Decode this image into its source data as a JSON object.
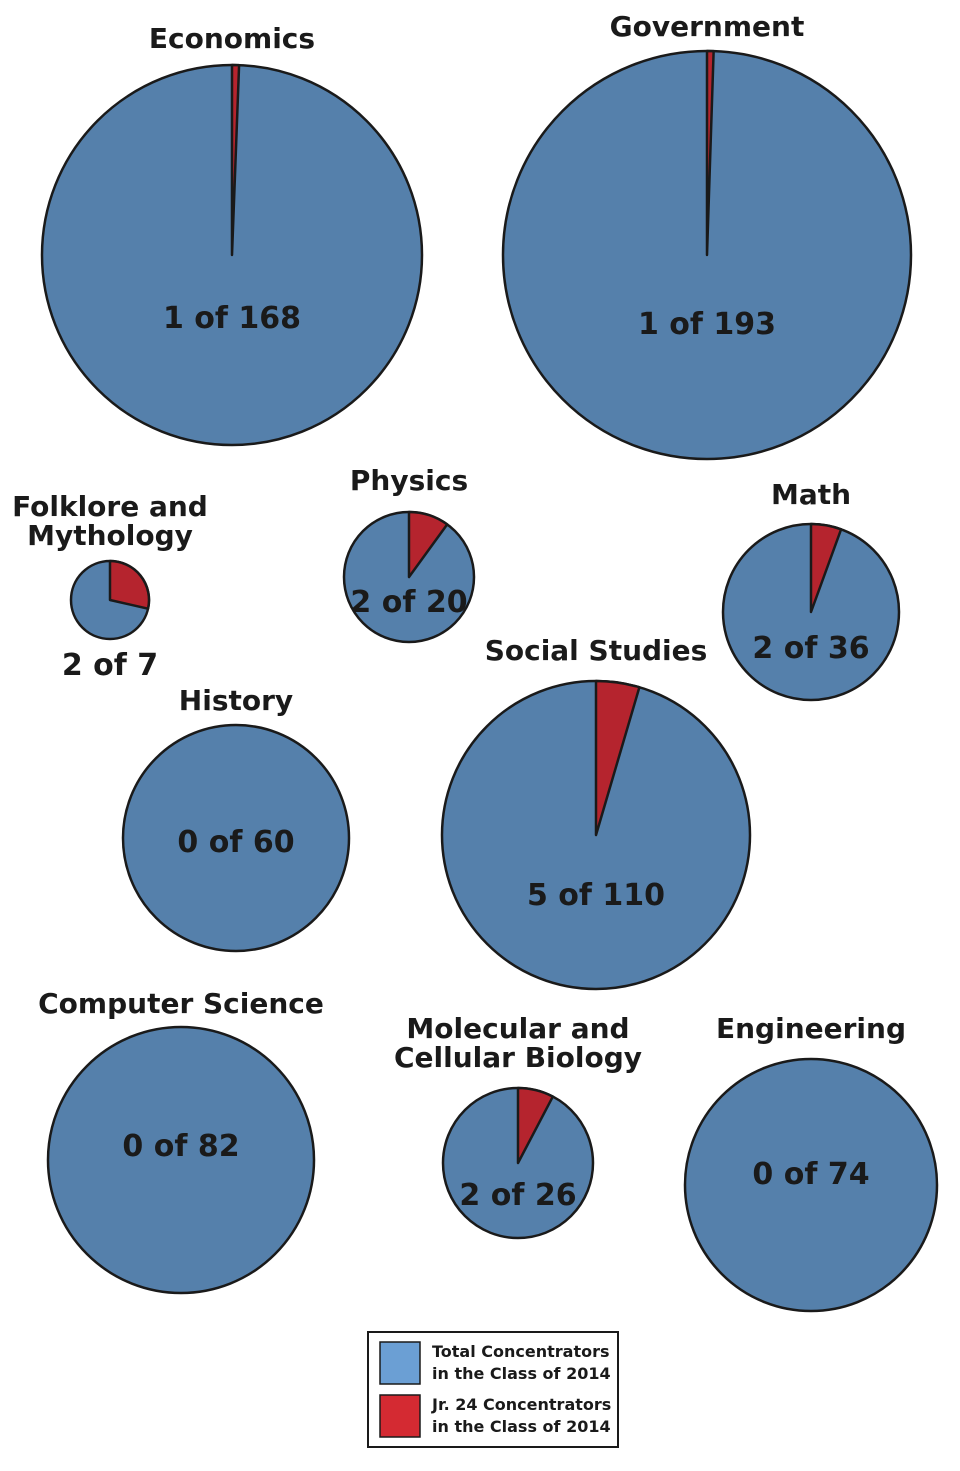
{
  "chart_data": {
    "type": "pie",
    "colors": {
      "total": "#5580ab",
      "jr24": "#b5242e",
      "outline": "#1a1a1a",
      "legend_total": "#6b9fd4",
      "legend_jr24": "#d42a32"
    },
    "legend": [
      {
        "key": "total",
        "line1": "Total Concentrators",
        "line2": "in the Class of 2014"
      },
      {
        "key": "jr24",
        "line1": "Jr. 24 Concentrators",
        "line2": "in the Class of 2014"
      }
    ],
    "pies": [
      {
        "name": "Economics",
        "title_lines": [
          "Economics"
        ],
        "jr24": 1,
        "total": 168,
        "label": "1 of 168"
      },
      {
        "name": "Government",
        "title_lines": [
          "Government"
        ],
        "jr24": 1,
        "total": 193,
        "label": "1 of 193"
      },
      {
        "name": "Folklore and Mythology",
        "title_lines": [
          "Folklore and",
          "Mythology"
        ],
        "jr24": 2,
        "total": 7,
        "label": "2 of 7"
      },
      {
        "name": "Physics",
        "title_lines": [
          "Physics"
        ],
        "jr24": 2,
        "total": 20,
        "label": "2 of 20"
      },
      {
        "name": "Math",
        "title_lines": [
          "Math"
        ],
        "jr24": 2,
        "total": 36,
        "label": "2 of 36"
      },
      {
        "name": "History",
        "title_lines": [
          "History"
        ],
        "jr24": 0,
        "total": 60,
        "label": "0 of 60"
      },
      {
        "name": "Social Studies",
        "title_lines": [
          "Social Studies"
        ],
        "jr24": 5,
        "total": 110,
        "label": "5 of 110"
      },
      {
        "name": "Computer Science",
        "title_lines": [
          "Computer Science"
        ],
        "jr24": 0,
        "total": 82,
        "label": "0 of 82"
      },
      {
        "name": "Molecular and Cellular Biology",
        "title_lines": [
          "Molecular and",
          "Cellular Biology"
        ],
        "jr24": 2,
        "total": 26,
        "label": "2 of 26"
      },
      {
        "name": "Engineering",
        "title_lines": [
          "Engineering"
        ],
        "jr24": 0,
        "total": 74,
        "label": "0 of 74"
      }
    ]
  }
}
